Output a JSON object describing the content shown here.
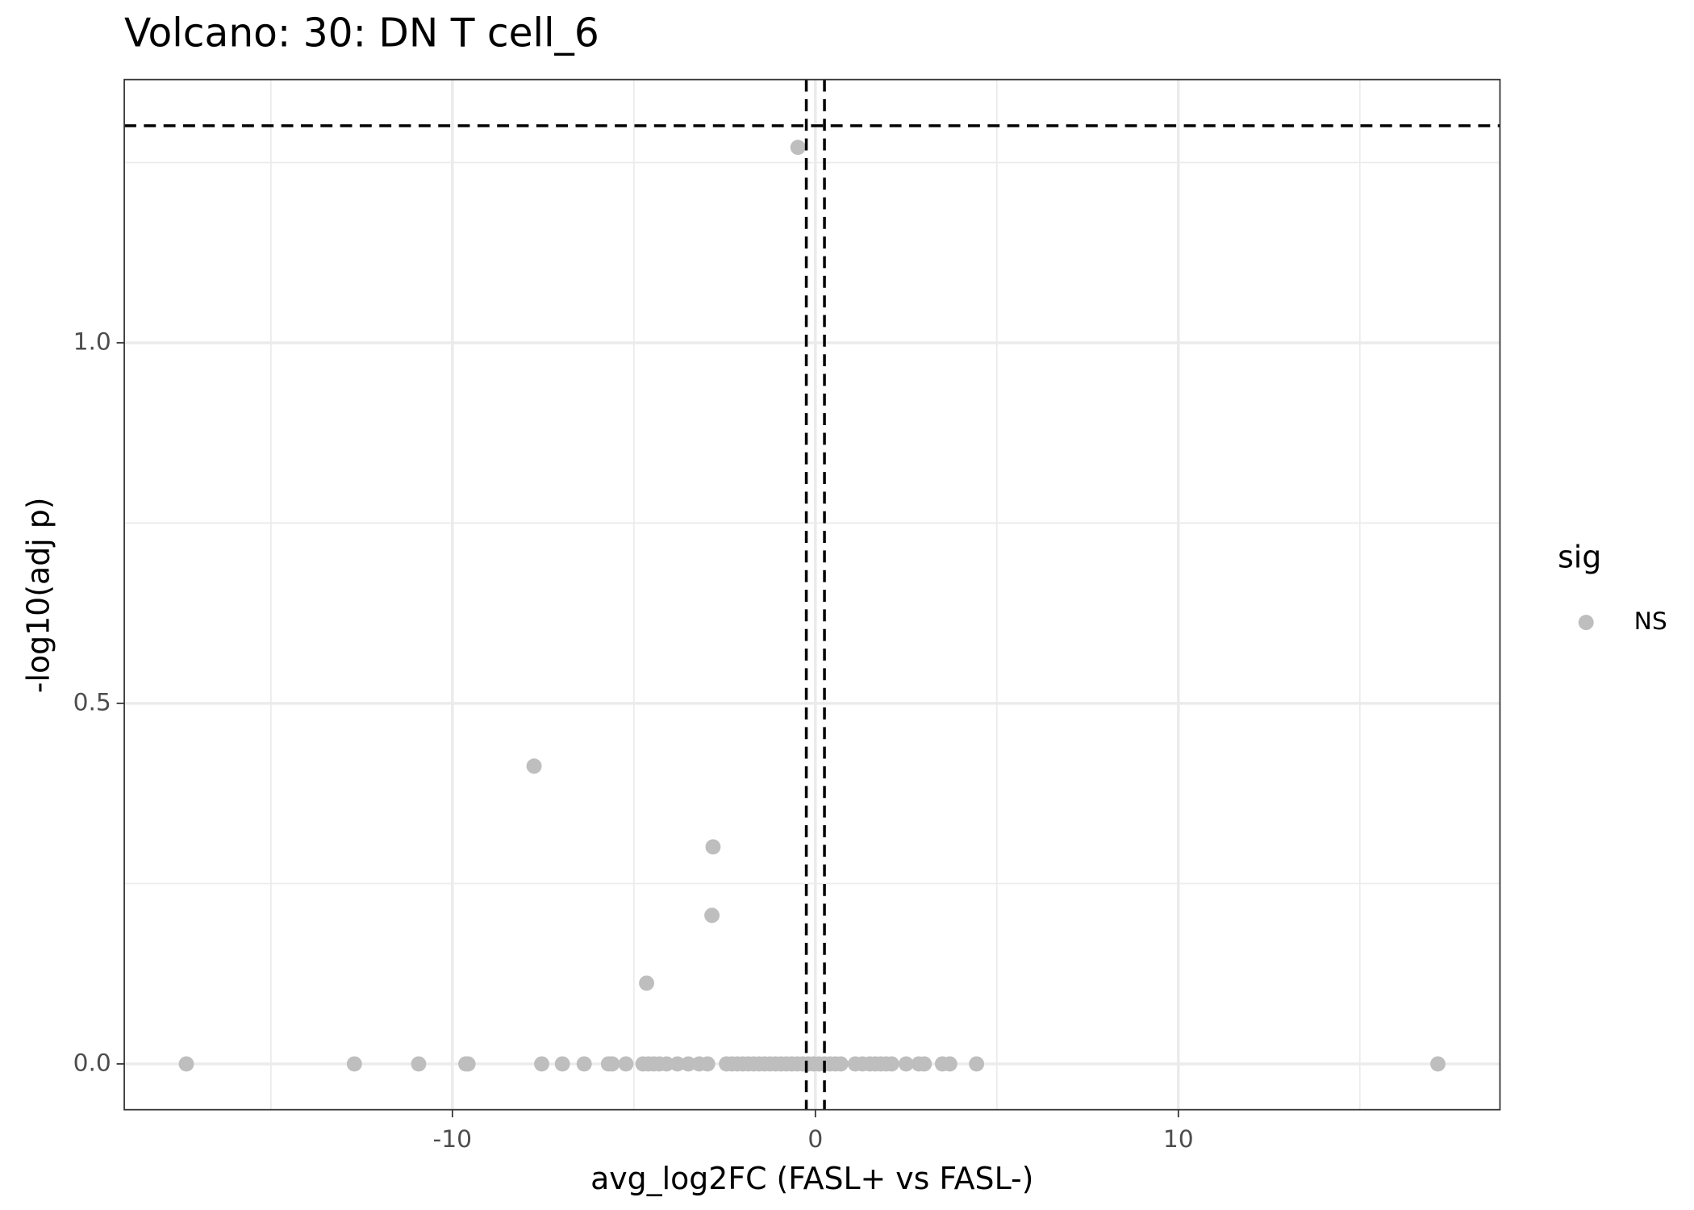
{
  "chart_data": {
    "type": "scatter",
    "title": "Volcano: 30: DN T cell_6",
    "x_label": "avg_log2FC (FASL+ vs FASL-)",
    "y_label": "-log10(adj p)",
    "legend_title": "sig",
    "legend_position": "right",
    "grid": true,
    "xlim": [
      -19.04,
      18.86
    ],
    "ylim": [
      -0.0635,
      1.365
    ],
    "xticks": [
      -10,
      0,
      10
    ],
    "yticks": [
      {
        "value": 0,
        "label": "0.0"
      },
      {
        "value": 0.5,
        "label": "0.5"
      },
      {
        "value": 1,
        "label": "1.0"
      }
    ],
    "xminor": [
      -15,
      -5,
      5,
      15
    ],
    "yminor": [
      0.25,
      0.75,
      1.25
    ],
    "hlines": [
      1.301
    ],
    "vlines": [
      -0.25,
      0.25
    ],
    "series": [
      {
        "name": "NS",
        "color": "#bebebe",
        "x": [
          -17.33,
          -12.7,
          -10.93,
          -9.63,
          -9.57,
          -7.54,
          -6.97,
          -6.37,
          -5.7,
          -5.6,
          -5.22,
          -4.75,
          -4.6,
          -4.45,
          -4.3,
          -4.1,
          -3.8,
          -3.5,
          -3.2,
          -2.97,
          -2.45,
          -2.3,
          -2.15,
          -2.0,
          -1.85,
          -1.7,
          -1.55,
          -1.4,
          -1.25,
          -1.1,
          -0.95,
          -0.8,
          -0.65,
          -0.5,
          -0.35,
          -0.2,
          -0.05,
          0.1,
          0.25,
          0.4,
          0.55,
          0.7,
          1.1,
          1.3,
          1.5,
          1.65,
          1.8,
          1.95,
          2.1,
          2.5,
          2.85,
          3.0,
          3.5,
          3.7,
          4.44,
          17.15,
          -7.75,
          -2.82,
          -2.85,
          -4.65,
          -0.48
        ],
        "values": [
          0,
          0,
          0,
          0,
          0,
          0,
          0,
          0,
          0,
          0,
          0,
          0,
          0,
          0,
          0,
          0,
          0,
          0,
          0,
          0,
          0,
          0,
          0,
          0,
          0,
          0,
          0,
          0,
          0,
          0,
          0,
          0,
          0,
          0,
          0,
          0,
          0,
          0,
          0,
          0,
          0,
          0,
          0,
          0,
          0,
          0,
          0,
          0,
          0,
          0,
          0,
          0,
          0,
          0,
          0,
          0,
          0.413,
          0.301,
          0.206,
          0.112,
          1.271
        ]
      }
    ]
  }
}
